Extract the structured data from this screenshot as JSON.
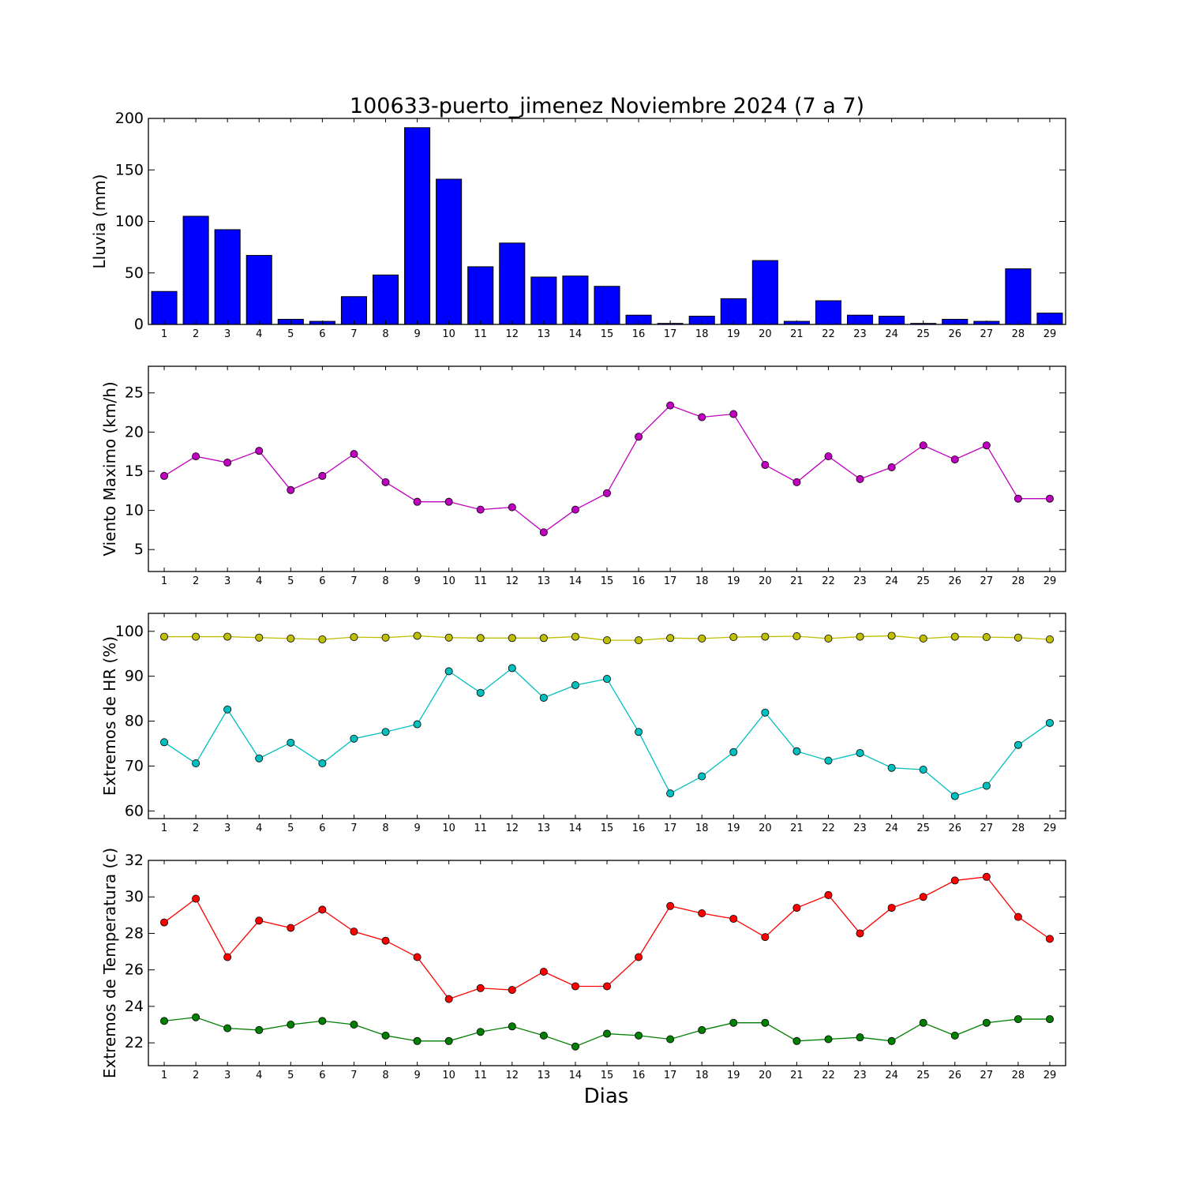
{
  "title": "100633-puerto_jimenez Noviembre 2024  (7 a 7)",
  "xlabel": "Dias",
  "chart_data": [
    {
      "type": "bar",
      "ylabel": "Lluvia (mm)",
      "color": "#0000ff",
      "ylim": [
        0,
        200
      ],
      "yticks": [
        0,
        50,
        100,
        150,
        200
      ],
      "categories": [
        1,
        2,
        3,
        4,
        5,
        6,
        7,
        8,
        9,
        10,
        11,
        12,
        13,
        14,
        15,
        16,
        17,
        18,
        19,
        20,
        21,
        22,
        23,
        24,
        25,
        26,
        27,
        28,
        29
      ],
      "values": [
        32,
        105,
        92,
        67,
        5,
        3,
        27,
        48,
        191,
        141,
        56,
        79,
        46,
        47,
        37,
        9,
        1,
        8,
        25,
        62,
        3,
        23,
        9,
        8,
        1,
        5,
        3,
        54,
        11
      ]
    },
    {
      "type": "line",
      "ylabel": "Viento Maximo (km/h)",
      "ylim": [
        2.2,
        28.4
      ],
      "yticks": [
        5,
        10,
        15,
        20,
        25
      ],
      "x": [
        1,
        2,
        3,
        4,
        5,
        6,
        7,
        8,
        9,
        10,
        11,
        12,
        13,
        14,
        15,
        16,
        17,
        18,
        19,
        20,
        21,
        22,
        23,
        24,
        25,
        26,
        27,
        28,
        29
      ],
      "series": [
        {
          "color": "#bf00bf",
          "values": [
            14.4,
            16.9,
            16.1,
            17.6,
            12.6,
            14.4,
            17.2,
            13.6,
            11.1,
            11.1,
            10.1,
            10.4,
            7.2,
            10.1,
            12.2,
            19.4,
            23.4,
            21.9,
            22.3,
            15.8,
            13.6,
            16.9,
            14.0,
            15.5,
            18.3,
            16.5,
            18.3,
            11.5,
            11.5
          ]
        }
      ]
    },
    {
      "type": "line",
      "ylabel": "Extremos de HR (%)",
      "ylim": [
        58.3,
        104
      ],
      "yticks": [
        60,
        70,
        80,
        90,
        100
      ],
      "x": [
        1,
        2,
        3,
        4,
        5,
        6,
        7,
        8,
        9,
        10,
        11,
        12,
        13,
        14,
        15,
        16,
        17,
        18,
        19,
        20,
        21,
        22,
        23,
        24,
        25,
        26,
        27,
        28,
        29
      ],
      "series": [
        {
          "color": "#bfbf00",
          "values": [
            98.8,
            98.8,
            98.8,
            98.6,
            98.4,
            98.2,
            98.7,
            98.6,
            99.0,
            98.6,
            98.5,
            98.5,
            98.5,
            98.8,
            98.0,
            98.0,
            98.5,
            98.4,
            98.7,
            98.8,
            98.9,
            98.4,
            98.8,
            99.0,
            98.4,
            98.8,
            98.7,
            98.6,
            98.2
          ]
        },
        {
          "color": "#00bfbf",
          "values": [
            75.3,
            70.6,
            82.6,
            71.7,
            75.2,
            70.6,
            76.1,
            77.6,
            79.3,
            91.1,
            86.3,
            91.8,
            85.2,
            88.0,
            89.4,
            77.6,
            63.9,
            67.7,
            73.1,
            81.9,
            73.3,
            71.2,
            72.9,
            69.6,
            69.2,
            63.3,
            65.6,
            74.7,
            79.6
          ]
        }
      ]
    },
    {
      "type": "line",
      "ylabel": "Extremos de Temperatura (c)",
      "ylim": [
        20.75,
        32
      ],
      "yticks": [
        22,
        24,
        26,
        28,
        30,
        32
      ],
      "x": [
        1,
        2,
        3,
        4,
        5,
        6,
        7,
        8,
        9,
        10,
        11,
        12,
        13,
        14,
        15,
        16,
        17,
        18,
        19,
        20,
        21,
        22,
        23,
        24,
        25,
        26,
        27,
        28,
        29
      ],
      "series": [
        {
          "color": "#ff0000",
          "values": [
            28.6,
            29.9,
            26.7,
            28.7,
            28.3,
            29.3,
            28.1,
            27.6,
            26.7,
            24.4,
            25.0,
            24.9,
            25.9,
            25.1,
            25.1,
            26.7,
            29.5,
            29.1,
            28.8,
            27.8,
            29.4,
            30.1,
            28.0,
            29.4,
            30.0,
            30.9,
            31.1,
            28.9,
            27.7
          ]
        },
        {
          "color": "#008000",
          "values": [
            23.2,
            23.4,
            22.8,
            22.7,
            23.0,
            23.2,
            23.0,
            22.4,
            22.1,
            22.1,
            22.6,
            22.9,
            22.4,
            21.8,
            22.5,
            22.4,
            22.2,
            22.7,
            23.1,
            23.1,
            22.1,
            22.2,
            22.3,
            22.1,
            23.1,
            22.4,
            23.1,
            23.3,
            23.3
          ]
        }
      ]
    }
  ]
}
